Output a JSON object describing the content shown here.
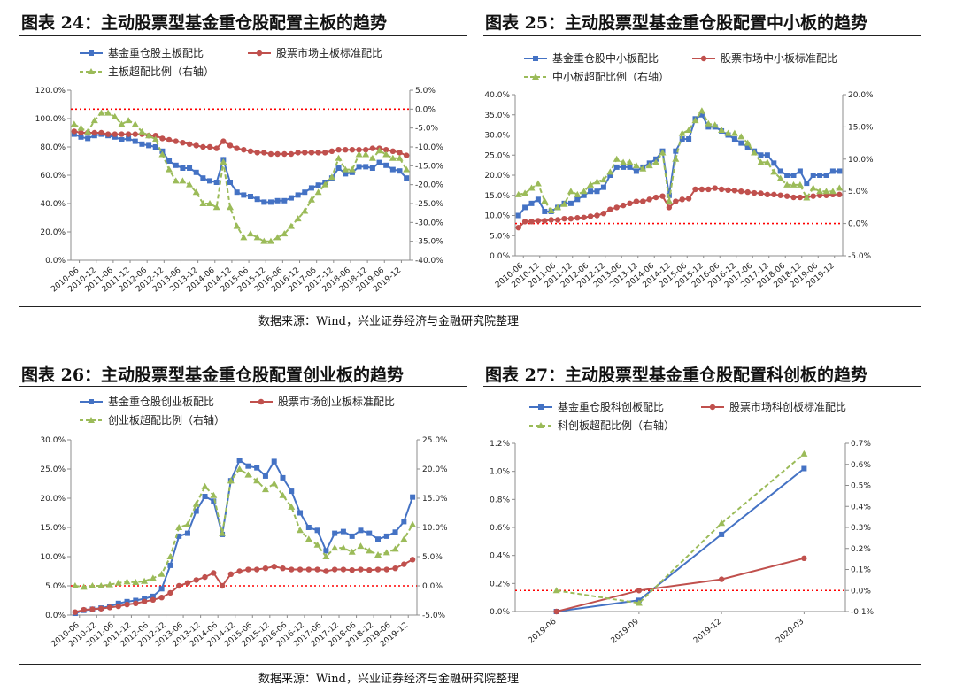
{
  "panels": [
    {
      "title": "图表 24：主动股票型基金重仓股配置主板的趋势"
    },
    {
      "title": "图表 25：主动股票型基金重仓股配置中小板的趋势"
    },
    {
      "title": "图表 26：主动股票型基金重仓股配置创业板的趋势"
    },
    {
      "title": "图表 27：主动股票型基金重仓股配置科创板的趋势"
    }
  ],
  "sources": {
    "top": "数据来源：Wind，兴业证券经济与金融研究院整理",
    "bottom": "数据来源：Wind，兴业证券经济与金融研究院整理"
  },
  "colors": {
    "blue": "#4472C4",
    "red": "#C0504D",
    "green": "#9BBB59",
    "refline": "#FF0000"
  },
  "chart_data": [
    {
      "type": "line",
      "x_ticks": [
        "2010-06",
        "2010-12",
        "2011-06",
        "2011-12",
        "2012-06",
        "2012-12",
        "2013-06",
        "2013-12",
        "2014-06",
        "2014-12",
        "2015-06",
        "2015-12",
        "2016-06",
        "2016-12",
        "2017-06",
        "2017-12",
        "2018-06",
        "2018-12",
        "2019-06",
        "2019-12"
      ],
      "ylim": [
        0,
        120
      ],
      "yticks_left": [
        "0.0%",
        "20.0%",
        "40.0%",
        "60.0%",
        "80.0%",
        "100.0%",
        "120.0%"
      ],
      "y2lim": [
        -40,
        5
      ],
      "yticks_right": [
        "-40.0%",
        "-35.0%",
        "-30.0%",
        "-25.0%",
        "-20.0%",
        "-15.0%",
        "-10.0%",
        "-5.0%",
        "0.0%",
        "5.0%"
      ],
      "secondary_ref": 0,
      "series": [
        {
          "name": "基金重仓股主板配比",
          "axis": "left",
          "marker": "square",
          "color": "blue",
          "values": [
            89,
            87,
            86,
            88,
            89,
            88,
            87,
            85,
            86,
            84,
            82,
            81,
            80,
            77,
            70,
            67,
            65,
            65,
            62,
            58,
            56,
            55,
            71,
            55,
            48,
            46,
            45,
            43,
            41,
            41,
            42,
            42,
            44,
            46,
            48,
            51,
            53,
            55,
            58,
            65,
            61,
            62,
            66,
            66,
            65,
            69,
            67,
            64,
            63,
            58
          ]
        },
        {
          "name": "股票市场主板标准配比",
          "axis": "left",
          "marker": "circle",
          "color": "red",
          "values": [
            91,
            90,
            90,
            90,
            90,
            89,
            89,
            89,
            89,
            89,
            89,
            88,
            88,
            86,
            85,
            84,
            83,
            82,
            81,
            80,
            80,
            79,
            84,
            81,
            79,
            78,
            77,
            76,
            76,
            75,
            75,
            75,
            75,
            76,
            76,
            76,
            76,
            76,
            77,
            78,
            78,
            78,
            78,
            78,
            79,
            79,
            78,
            77,
            76,
            74
          ]
        },
        {
          "name": "主板超配比例（右轴）",
          "axis": "right",
          "marker": "triangle",
          "color": "green",
          "dashed": true,
          "values": [
            -4,
            -5,
            -6,
            -3,
            -1,
            -1,
            -2,
            -4,
            -3,
            -4,
            -6,
            -7,
            -8,
            -12,
            -16,
            -19,
            -19,
            -20,
            -22,
            -25,
            -25,
            -26,
            -14,
            -26,
            -31,
            -34,
            -33,
            -34,
            -35,
            -35,
            -34,
            -33,
            -31,
            -29,
            -27,
            -24,
            -22,
            -20,
            -18,
            -13,
            -16,
            -16,
            -12,
            -12,
            -13,
            -11,
            -12,
            -13,
            -13,
            -16
          ]
        }
      ]
    },
    {
      "type": "line",
      "x_ticks": [
        "2010-06",
        "2010-12",
        "2011-06",
        "2011-12",
        "2012-06",
        "2012-12",
        "2013-06",
        "2013-12",
        "2014-06",
        "2014-12",
        "2015-06",
        "2015-12",
        "2016-06",
        "2016-12",
        "2017-06",
        "2017-12",
        "2018-06",
        "2018-12",
        "2019-06",
        "2019-12"
      ],
      "ylim": [
        0,
        40
      ],
      "yticks_left": [
        "0.0%",
        "5.0%",
        "10.0%",
        "15.0%",
        "20.0%",
        "25.0%",
        "30.0%",
        "35.0%",
        "40.0%"
      ],
      "y2lim": [
        -5,
        20
      ],
      "yticks_right": [
        "-5.0%",
        "0.0%",
        "5.0%",
        "10.0%",
        "15.0%",
        "20.0%"
      ],
      "secondary_ref": 0,
      "series": [
        {
          "name": "基金重仓股中小板配比",
          "axis": "left",
          "marker": "square",
          "color": "blue",
          "values": [
            10,
            12,
            13,
            14,
            11,
            11,
            12,
            13,
            13,
            14,
            15,
            16,
            16,
            17,
            20,
            22,
            22,
            22,
            21,
            22,
            23,
            24,
            26,
            15,
            26,
            29,
            29,
            34,
            35,
            32,
            32,
            31,
            30,
            29,
            28,
            27,
            26,
            25,
            25,
            23,
            21,
            20,
            20,
            21,
            18,
            20,
            20,
            20,
            21,
            21
          ]
        },
        {
          "name": "股票市场中小板标准配比",
          "axis": "left",
          "marker": "circle",
          "color": "red",
          "values": [
            7,
            8.5,
            8.5,
            8.7,
            8.7,
            8.9,
            8.9,
            9.2,
            9.2,
            9.4,
            9.5,
            9.8,
            10,
            10.5,
            11.5,
            12,
            12.5,
            13,
            13.5,
            13.5,
            14,
            14.5,
            14.8,
            12,
            13.5,
            14,
            14.2,
            16.5,
            16.5,
            16.5,
            16.8,
            16.5,
            16.3,
            16.2,
            16,
            15.8,
            15.6,
            15.5,
            15.2,
            15.2,
            15,
            14.8,
            14.5,
            14.5,
            14.5,
            14.8,
            15,
            15,
            15.2,
            15.2
          ]
        },
        {
          "name": "中小板超配比例（右轴）",
          "axis": "right",
          "marker": "triangle",
          "color": "green",
          "dashed": true,
          "values": [
            4.5,
            4.7,
            5.5,
            6.2,
            3.5,
            2,
            2.5,
            3,
            5,
            4.5,
            5,
            6,
            6.5,
            6.8,
            8,
            10,
            9.5,
            9.5,
            9,
            8.5,
            9,
            9.5,
            11,
            3.5,
            10,
            14,
            14.5,
            16,
            17.5,
            15.5,
            15.3,
            14.5,
            14,
            14,
            13.5,
            12.5,
            11,
            9.5,
            9.5,
            8,
            7,
            6,
            6,
            6,
            4,
            5.5,
            5,
            5,
            5,
            5.5
          ]
        }
      ]
    },
    {
      "type": "line",
      "x_ticks": [
        "2010-06",
        "2010-12",
        "2011-06",
        "2011-12",
        "2012-06",
        "2012-12",
        "2013-06",
        "2013-12",
        "2014-06",
        "2014-12",
        "2015-06",
        "2015-12",
        "2016-06",
        "2016-12",
        "2017-06",
        "2017-12",
        "2018-06",
        "2018-12",
        "2019-06",
        "2019-12"
      ],
      "ylim": [
        0,
        30
      ],
      "yticks_left": [
        "0.0%",
        "5.0%",
        "10.0%",
        "15.0%",
        "20.0%",
        "25.0%",
        "30.0%"
      ],
      "y2lim": [
        -5,
        25
      ],
      "yticks_right": [
        "-5.0%",
        "0.0%",
        "5.0%",
        "10.0%",
        "15.0%",
        "20.0%",
        "25.0%"
      ],
      "secondary_ref": 0,
      "series": [
        {
          "name": "基金重仓股创业板配比",
          "axis": "left",
          "marker": "square",
          "color": "blue",
          "values": [
            0.3,
            0.8,
            1,
            1.2,
            1.5,
            2,
            2.3,
            2.5,
            2.8,
            3.2,
            4.5,
            8.5,
            13.5,
            14,
            17.8,
            20.3,
            19.5,
            13.8,
            23,
            26.5,
            25.5,
            25.2,
            23.8,
            26.3,
            23.5,
            21.2,
            17.5,
            15,
            14.5,
            11,
            14,
            14.3,
            13.5,
            14.5,
            14,
            13,
            13.5,
            14.2,
            16,
            20.2
          ]
        },
        {
          "name": "股票市场创业板标准配比",
          "axis": "left",
          "marker": "circle",
          "color": "red",
          "values": [
            0.5,
            0.9,
            1,
            1.1,
            1.3,
            1.5,
            1.8,
            2,
            2.3,
            2.6,
            3,
            3.8,
            5,
            5.5,
            6,
            6.5,
            7.2,
            5,
            7,
            7.5,
            7.8,
            7.8,
            8,
            8.3,
            8,
            7.8,
            7.8,
            7.8,
            7.8,
            7.5,
            7.8,
            7.8,
            7.7,
            7.8,
            7.7,
            7.8,
            7.8,
            8,
            8.7,
            9.5
          ]
        },
        {
          "name": "创业板超配比例（右轴）",
          "axis": "right",
          "marker": "triangle",
          "color": "green",
          "dashed": true,
          "values": [
            0,
            -0.2,
            0,
            0,
            0.2,
            0.5,
            0.7,
            0.6,
            0.8,
            1.3,
            2,
            5,
            10,
            10.5,
            14,
            17,
            15.5,
            9,
            18,
            20,
            19,
            18,
            16.5,
            17.5,
            15.5,
            13.5,
            9.5,
            8,
            7,
            5,
            6.5,
            6.5,
            5.8,
            6.8,
            6,
            5.3,
            5.7,
            6.3,
            8,
            10.5
          ]
        }
      ]
    },
    {
      "type": "line",
      "x_ticks": [
        "2019-06",
        "2019-09",
        "2019-12",
        "2020-03"
      ],
      "ylim": [
        0,
        1.2
      ],
      "yticks_left": [
        "0.0%",
        "0.2%",
        "0.4%",
        "0.6%",
        "0.8%",
        "1.0%",
        "1.2%"
      ],
      "y2lim": [
        -0.1,
        0.7
      ],
      "yticks_right": [
        "-0.1%",
        "0.0%",
        "0.1%",
        "0.2%",
        "0.3%",
        "0.4%",
        "0.5%",
        "0.6%",
        "0.7%"
      ],
      "secondary_ref": 0,
      "series": [
        {
          "name": "基金重仓股科创板配比",
          "axis": "left",
          "marker": "square",
          "color": "blue",
          "values": [
            0.0,
            0.08,
            0.55,
            1.02
          ]
        },
        {
          "name": "股票市场科创板标准配比",
          "axis": "left",
          "marker": "circle",
          "color": "red",
          "values": [
            0.0,
            0.15,
            0.23,
            0.38
          ]
        },
        {
          "name": "科创板超配比例（右轴）",
          "axis": "right",
          "marker": "triangle",
          "color": "green",
          "dashed": true,
          "values": [
            0.0,
            -0.06,
            0.32,
            0.65
          ]
        }
      ]
    }
  ]
}
